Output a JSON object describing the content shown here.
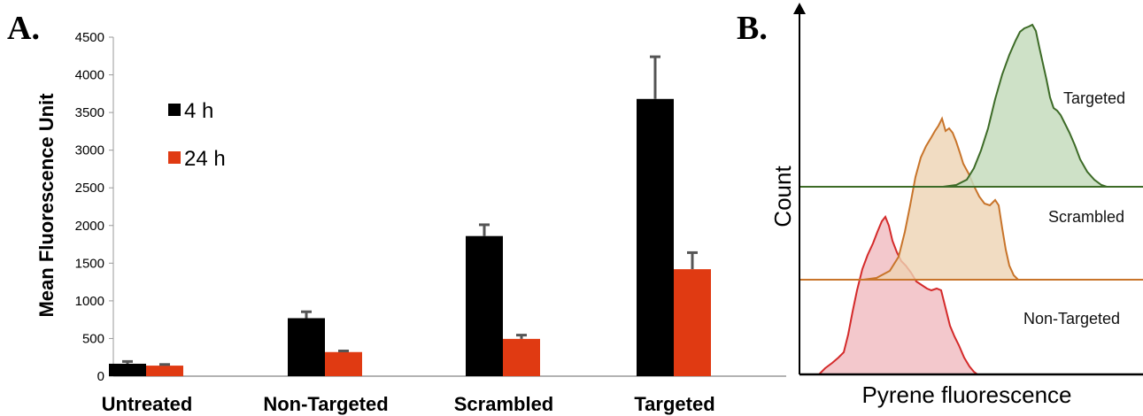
{
  "panel_a_label": "A.",
  "panel_b_label": "B.",
  "chart_data": [
    {
      "type": "bar",
      "panel": "A.",
      "categories": [
        "Untreated",
        "Non-Targeted",
        "Scrambled",
        "Targeted"
      ],
      "series": [
        {
          "name": "4 h",
          "color": "#000000",
          "values": [
            165,
            770,
            1860,
            3680
          ],
          "errors": [
            30,
            85,
            150,
            560
          ]
        },
        {
          "name": "24 h",
          "color": "#e03a12",
          "values": [
            140,
            320,
            495,
            1420
          ],
          "errors": [
            15,
            15,
            50,
            220
          ]
        }
      ],
      "ylabel": "Mean Fluorescence Unit",
      "ylim": [
        0,
        4500
      ],
      "yticks": [
        0,
        500,
        1000,
        1500,
        2000,
        2500,
        3000,
        3500,
        4000,
        4500
      ],
      "legend_position": "top-left",
      "grid": false
    },
    {
      "type": "area",
      "panel": "B.",
      "xlabel": "Pyrene fluorescence",
      "ylabel": "Count",
      "layout": "offset histograms (stacked baselines)",
      "series": [
        {
          "name": "Targeted",
          "line_color": "#3d6b27",
          "fill_color": "#c6dcbd"
        },
        {
          "name": "Scrambled",
          "line_color": "#c8742a",
          "fill_color": "#eed3b3"
        },
        {
          "name": "Non-Targeted",
          "line_color": "#d42a2a",
          "fill_color": "#f2c2c6"
        }
      ]
    }
  ]
}
